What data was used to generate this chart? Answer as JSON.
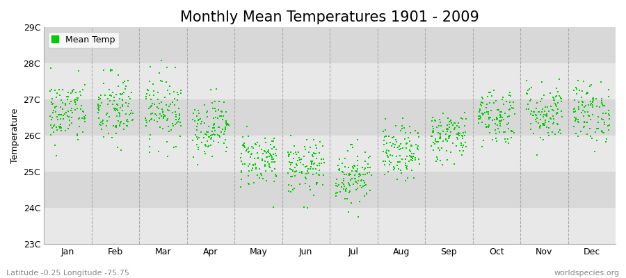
{
  "title": "Monthly Mean Temperatures 1901 - 2009",
  "ylabel": "Temperature",
  "subtitle_left": "Latitude -0.25 Longitude -75.75",
  "subtitle_right": "worldspecies.org",
  "ylim": [
    23.0,
    29.0
  ],
  "ytick_labels": [
    "23C",
    "24C",
    "25C",
    "26C",
    "27C",
    "28C",
    "29C"
  ],
  "ytick_values": [
    23,
    24,
    25,
    26,
    27,
    28,
    29
  ],
  "months": [
    "Jan",
    "Feb",
    "Mar",
    "Apr",
    "May",
    "Jun",
    "Jul",
    "Aug",
    "Sep",
    "Oct",
    "Nov",
    "Dec"
  ],
  "monthly_means": [
    26.65,
    26.7,
    26.75,
    26.25,
    25.35,
    25.1,
    24.9,
    25.5,
    26.0,
    26.55,
    26.65,
    26.65
  ],
  "monthly_stds": [
    0.45,
    0.52,
    0.48,
    0.4,
    0.38,
    0.38,
    0.4,
    0.38,
    0.35,
    0.4,
    0.42,
    0.42
  ],
  "dot_color": "#00cc00",
  "dot_size": 3,
  "background_color": "#ffffff",
  "ax_background": "#e8e8e8",
  "band_light": "#e8e8e8",
  "band_dark": "#d8d8d8",
  "legend_label": "Mean Temp",
  "title_fontsize": 15,
  "axis_fontsize": 9,
  "tick_fontsize": 9,
  "n_years": 109,
  "seed": 42
}
